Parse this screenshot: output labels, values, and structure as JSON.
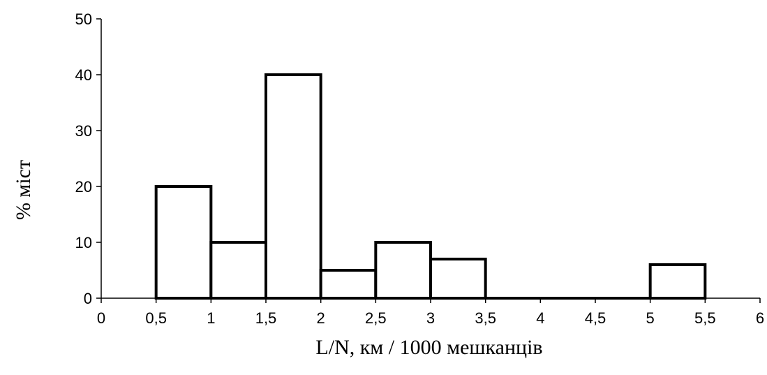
{
  "chart_data": {
    "type": "bar",
    "xlabel": "L/N, км / 1000 мешканців",
    "ylabel": "% міст",
    "xlim": [
      0,
      6
    ],
    "ylim": [
      0,
      50
    ],
    "x_ticks": [
      "0",
      "0,5",
      "1",
      "1,5",
      "2",
      "2,5",
      "3",
      "3,5",
      "4",
      "4,5",
      "5",
      "5,5",
      "6"
    ],
    "y_ticks": [
      "0",
      "10",
      "20",
      "30",
      "40",
      "50"
    ],
    "bins": [
      {
        "start": 0.5,
        "end": 1.0,
        "value": 20
      },
      {
        "start": 1.0,
        "end": 1.5,
        "value": 10
      },
      {
        "start": 1.5,
        "end": 2.0,
        "value": 40
      },
      {
        "start": 2.0,
        "end": 2.5,
        "value": 5
      },
      {
        "start": 2.5,
        "end": 3.0,
        "value": 10
      },
      {
        "start": 3.0,
        "end": 3.5,
        "value": 7
      },
      {
        "start": 3.5,
        "end": 4.0,
        "value": 0
      },
      {
        "start": 4.0,
        "end": 4.5,
        "value": 0
      },
      {
        "start": 4.5,
        "end": 5.0,
        "value": 0
      },
      {
        "start": 5.0,
        "end": 5.5,
        "value": 6
      }
    ],
    "grid": false,
    "legend": "none"
  }
}
